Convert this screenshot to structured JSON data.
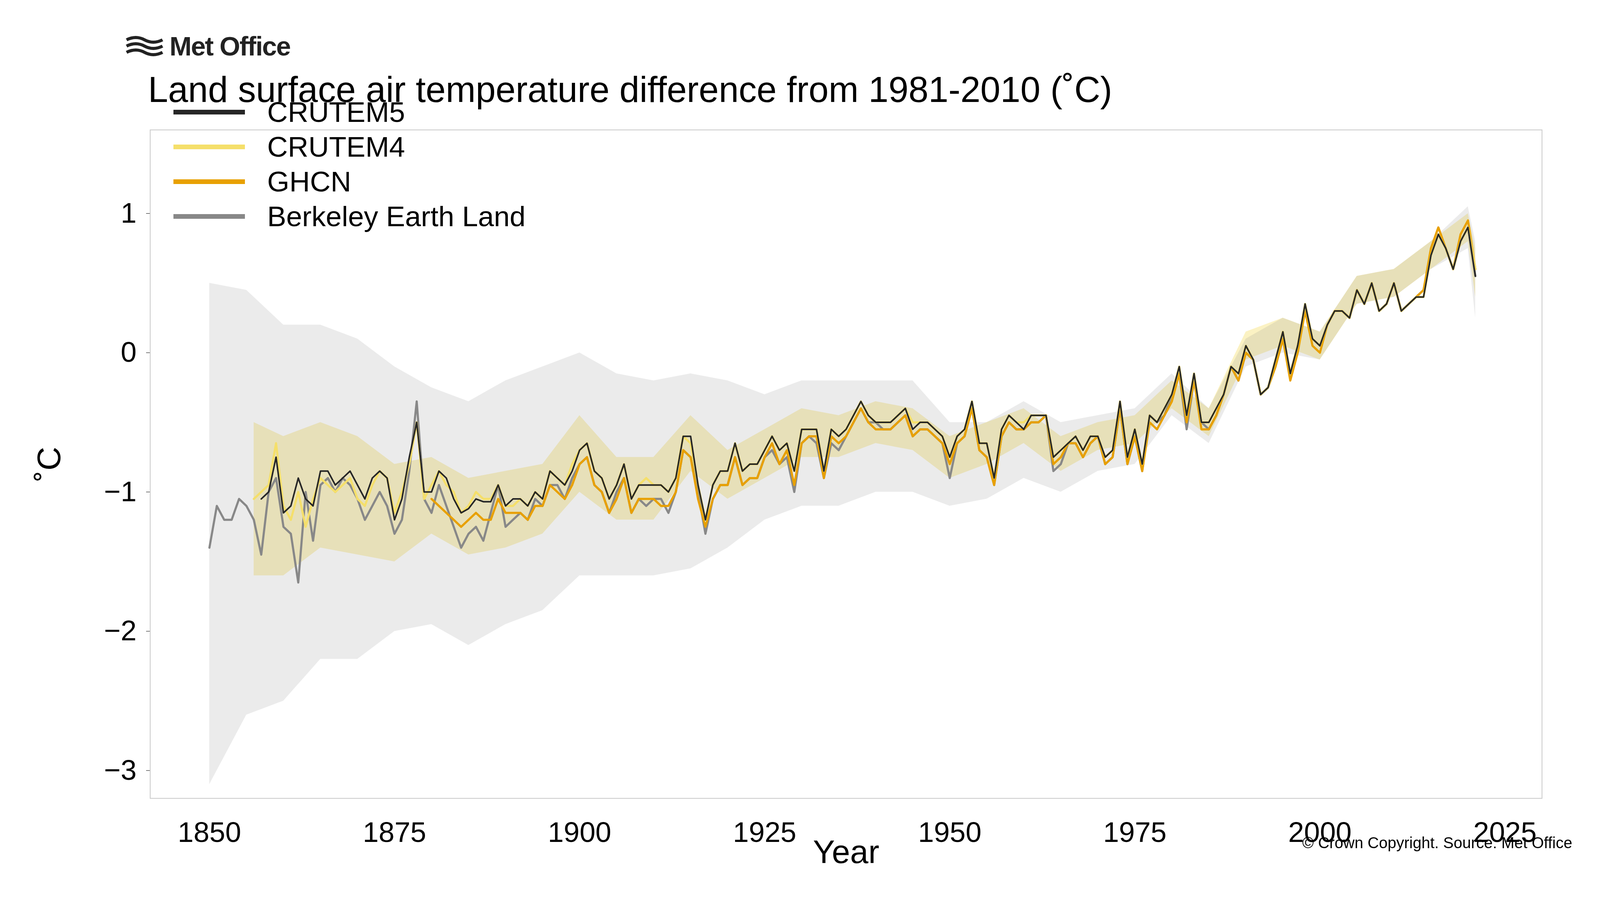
{
  "chart_data": {
    "type": "line",
    "logo_text": "Met Office",
    "title": "Land surface air temperature difference from 1981-2010 (˚C)",
    "xlabel": "Year",
    "ylabel": "˚C",
    "caption": "© Crown Copyright. Source: Met Office",
    "legend": "upper left",
    "grid": false,
    "xlim": [
      1842,
      2030
    ],
    "ylim": [
      -3.2,
      1.6
    ],
    "xticks": [
      1850,
      1875,
      1900,
      1925,
      1950,
      1975,
      2000,
      2025
    ],
    "yticks": [
      -3,
      -2,
      -1,
      0,
      1
    ],
    "x": [
      1850,
      1851,
      1852,
      1853,
      1854,
      1855,
      1856,
      1857,
      1858,
      1859,
      1860,
      1861,
      1862,
      1863,
      1864,
      1865,
      1866,
      1867,
      1868,
      1869,
      1870,
      1871,
      1872,
      1873,
      1874,
      1875,
      1876,
      1877,
      1878,
      1879,
      1880,
      1881,
      1882,
      1883,
      1884,
      1885,
      1886,
      1887,
      1888,
      1889,
      1890,
      1891,
      1892,
      1893,
      1894,
      1895,
      1896,
      1897,
      1898,
      1899,
      1900,
      1901,
      1902,
      1903,
      1904,
      1905,
      1906,
      1907,
      1908,
      1909,
      1910,
      1911,
      1912,
      1913,
      1914,
      1915,
      1916,
      1917,
      1918,
      1919,
      1920,
      1921,
      1922,
      1923,
      1924,
      1925,
      1926,
      1927,
      1928,
      1929,
      1930,
      1931,
      1932,
      1933,
      1934,
      1935,
      1936,
      1937,
      1938,
      1939,
      1940,
      1941,
      1942,
      1943,
      1944,
      1945,
      1946,
      1947,
      1948,
      1949,
      1950,
      1951,
      1952,
      1953,
      1954,
      1955,
      1956,
      1957,
      1958,
      1959,
      1960,
      1961,
      1962,
      1963,
      1964,
      1965,
      1966,
      1967,
      1968,
      1969,
      1970,
      1971,
      1972,
      1973,
      1974,
      1975,
      1976,
      1977,
      1978,
      1979,
      1980,
      1981,
      1982,
      1983,
      1984,
      1985,
      1986,
      1987,
      1988,
      1989,
      1990,
      1991,
      1992,
      1993,
      1994,
      1995,
      1996,
      1997,
      1998,
      1999,
      2000,
      2001,
      2002,
      2003,
      2004,
      2005,
      2006,
      2007,
      2008,
      2009,
      2010,
      2011,
      2012,
      2013,
      2014,
      2015,
      2016,
      2017,
      2018,
      2019,
      2020,
      2021
    ],
    "series": [
      {
        "name": "CRUTEM5",
        "color": "#262626",
        "values": [
          null,
          null,
          null,
          null,
          null,
          null,
          null,
          -1.05,
          -1.0,
          -0.75,
          -1.15,
          -1.1,
          -0.9,
          -1.05,
          -1.1,
          -0.85,
          -0.85,
          -0.95,
          -0.9,
          -0.85,
          -0.95,
          -1.05,
          -0.9,
          -0.85,
          -0.9,
          -1.2,
          -1.05,
          -0.75,
          -0.5,
          -1.0,
          -1.0,
          -0.85,
          -0.9,
          -1.05,
          -1.15,
          -1.12,
          -1.05,
          -1.07,
          -1.07,
          -0.95,
          -1.1,
          -1.05,
          -1.05,
          -1.1,
          -1.0,
          -1.05,
          -0.85,
          -0.9,
          -0.95,
          -0.85,
          -0.7,
          -0.65,
          -0.85,
          -0.9,
          -1.05,
          -0.95,
          -0.8,
          -1.05,
          -0.95,
          -0.95,
          -0.95,
          -0.95,
          -1.0,
          -0.9,
          -0.6,
          -0.6,
          -0.95,
          -1.2,
          -0.95,
          -0.85,
          -0.85,
          -0.65,
          -0.85,
          -0.8,
          -0.8,
          -0.7,
          -0.6,
          -0.7,
          -0.65,
          -0.85,
          -0.55,
          -0.55,
          -0.55,
          -0.85,
          -0.55,
          -0.6,
          -0.55,
          -0.45,
          -0.35,
          -0.45,
          -0.5,
          -0.5,
          -0.5,
          -0.45,
          -0.4,
          -0.55,
          -0.5,
          -0.5,
          -0.55,
          -0.6,
          -0.75,
          -0.6,
          -0.55,
          -0.35,
          -0.65,
          -0.65,
          -0.9,
          -0.55,
          -0.45,
          -0.5,
          -0.55,
          -0.45,
          -0.45,
          -0.45,
          -0.75,
          -0.7,
          -0.65,
          -0.6,
          -0.7,
          -0.6,
          -0.6,
          -0.75,
          -0.7,
          -0.35,
          -0.75,
          -0.55,
          -0.8,
          -0.45,
          -0.5,
          -0.4,
          -0.3,
          -0.1,
          -0.45,
          -0.15,
          -0.5,
          -0.5,
          -0.4,
          -0.3,
          -0.1,
          -0.15,
          0.05,
          -0.05,
          -0.3,
          -0.25,
          -0.05,
          0.15,
          -0.15,
          0.05,
          0.35,
          0.1,
          0.05,
          0.2,
          0.3,
          0.3,
          0.25,
          0.45,
          0.35,
          0.5,
          0.3,
          0.35,
          0.5,
          0.3,
          0.35,
          0.4,
          0.4,
          0.7,
          0.85,
          0.75,
          0.6,
          0.8,
          0.9,
          0.55
        ]
      },
      {
        "name": "CRUTEM4",
        "color": "#f5df6a",
        "values": [
          null,
          null,
          null,
          null,
          null,
          null,
          -1.05,
          -1.0,
          -0.95,
          -0.65,
          -1.1,
          -1.2,
          -1.0,
          -1.25,
          -1.05,
          -0.9,
          -0.95,
          -1.0,
          -0.95,
          -0.9,
          -1.05,
          -1.1,
          -0.95,
          -0.85,
          -0.9,
          -1.15,
          -1.0,
          -0.8,
          -0.5,
          -1.05,
          -0.95,
          -0.85,
          -0.95,
          -1.0,
          -1.15,
          -1.1,
          -1.0,
          -1.05,
          -1.05,
          -0.95,
          -1.1,
          -1.1,
          -1.05,
          -1.1,
          -1.0,
          -1.05,
          -0.85,
          -0.9,
          -0.95,
          -0.8,
          -0.7,
          -0.65,
          -0.85,
          -0.9,
          -1.05,
          -0.95,
          -0.8,
          -1.05,
          -0.95,
          -0.9,
          -0.95,
          -0.95,
          -1.0,
          -0.9,
          -0.6,
          -0.65,
          -0.95,
          -1.2,
          -0.95,
          -0.85,
          -0.85,
          -0.65,
          -0.85,
          -0.8,
          -0.8,
          -0.7,
          -0.6,
          -0.7,
          -0.65,
          -0.85,
          -0.55,
          -0.55,
          -0.55,
          -0.85,
          -0.55,
          -0.6,
          -0.55,
          -0.45,
          -0.35,
          -0.45,
          -0.5,
          -0.5,
          -0.5,
          -0.45,
          -0.4,
          -0.5,
          -0.5,
          -0.5,
          -0.55,
          -0.6,
          -0.75,
          -0.6,
          -0.55,
          -0.35,
          -0.65,
          -0.65,
          -0.9,
          -0.55,
          -0.45,
          -0.5,
          -0.5,
          -0.45,
          -0.45,
          -0.45,
          -0.75,
          -0.7,
          -0.65,
          -0.6,
          -0.7,
          -0.6,
          -0.6,
          -0.75,
          -0.7,
          -0.35,
          -0.75,
          -0.55,
          -0.8,
          -0.45,
          -0.5,
          -0.4,
          -0.3,
          -0.1,
          -0.45,
          -0.15,
          -0.5,
          -0.5,
          -0.4,
          -0.3,
          -0.1,
          -0.15,
          0.05,
          -0.05,
          -0.3,
          -0.25,
          -0.05,
          0.15,
          -0.15,
          0.05,
          0.35,
          0.1,
          0.05,
          0.2,
          0.3,
          0.3,
          0.25,
          0.45,
          0.35,
          0.5,
          0.3,
          0.35,
          0.5,
          0.3,
          0.35,
          0.4,
          0.4,
          0.7,
          0.85,
          0.75,
          0.6,
          0.8,
          0.9,
          0.6
        ],
        "band": {
          "x": [
            1856,
            1860,
            1865,
            1870,
            1875,
            1880,
            1885,
            1890,
            1895,
            1900,
            1905,
            1910,
            1915,
            1920,
            1925,
            1930,
            1935,
            1940,
            1945,
            1950,
            1955,
            1960,
            1965,
            1970,
            1975,
            1980,
            1985,
            1990,
            1995,
            2000,
            2005,
            2010,
            2015,
            2020,
            2021
          ],
          "lower": [
            -1.6,
            -1.6,
            -1.4,
            -1.45,
            -1.5,
            -1.3,
            -1.45,
            -1.4,
            -1.3,
            -1.0,
            -1.2,
            -1.2,
            -0.85,
            -1.05,
            -0.9,
            -0.75,
            -0.75,
            -0.65,
            -0.7,
            -0.9,
            -0.8,
            -0.65,
            -0.85,
            -0.7,
            -0.65,
            -0.4,
            -0.6,
            -0.05,
            0.05,
            -0.05,
            0.35,
            0.4,
            0.6,
            0.8,
            0.4
          ],
          "upper": [
            -0.5,
            -0.6,
            -0.5,
            -0.6,
            -0.8,
            -0.75,
            -0.9,
            -0.85,
            -0.8,
            -0.45,
            -0.75,
            -0.75,
            -0.45,
            -0.7,
            -0.55,
            -0.4,
            -0.45,
            -0.35,
            -0.4,
            -0.6,
            -0.5,
            -0.4,
            -0.6,
            -0.5,
            -0.45,
            -0.2,
            -0.4,
            0.15,
            0.25,
            0.15,
            0.55,
            0.6,
            0.8,
            1.0,
            0.75
          ]
        }
      },
      {
        "name": "GHCN",
        "color": "#e8a000",
        "values": [
          null,
          null,
          null,
          null,
          null,
          null,
          null,
          null,
          null,
          null,
          null,
          null,
          null,
          null,
          null,
          null,
          null,
          null,
          null,
          null,
          null,
          null,
          null,
          null,
          null,
          null,
          null,
          null,
          null,
          null,
          -1.05,
          -1.1,
          -1.15,
          -1.2,
          -1.25,
          -1.2,
          -1.15,
          -1.2,
          -1.2,
          -1.05,
          -1.15,
          -1.15,
          -1.15,
          -1.2,
          -1.1,
          -1.1,
          -0.95,
          -1.0,
          -1.05,
          -0.95,
          -0.8,
          -0.75,
          -0.95,
          -1.0,
          -1.15,
          -1.05,
          -0.9,
          -1.15,
          -1.05,
          -1.05,
          -1.05,
          -1.1,
          -1.1,
          -1.0,
          -0.7,
          -0.75,
          -1.05,
          -1.25,
          -1.05,
          -0.95,
          -0.95,
          -0.75,
          -0.95,
          -0.9,
          -0.9,
          -0.75,
          -0.65,
          -0.8,
          -0.7,
          -0.95,
          -0.65,
          -0.6,
          -0.6,
          -0.9,
          -0.6,
          -0.65,
          -0.6,
          -0.5,
          -0.4,
          -0.5,
          -0.55,
          -0.55,
          -0.55,
          -0.5,
          -0.45,
          -0.6,
          -0.55,
          -0.55,
          -0.6,
          -0.65,
          -0.8,
          -0.65,
          -0.6,
          -0.4,
          -0.7,
          -0.75,
          -0.95,
          -0.6,
          -0.5,
          -0.55,
          -0.55,
          -0.5,
          -0.5,
          -0.45,
          -0.8,
          -0.75,
          -0.65,
          -0.65,
          -0.75,
          -0.65,
          -0.6,
          -0.8,
          -0.75,
          -0.4,
          -0.8,
          -0.6,
          -0.85,
          -0.5,
          -0.55,
          -0.45,
          -0.35,
          -0.15,
          -0.5,
          -0.2,
          -0.55,
          -0.55,
          -0.45,
          -0.3,
          -0.1,
          -0.2,
          0.0,
          -0.05,
          -0.3,
          -0.25,
          -0.1,
          0.1,
          -0.2,
          0.0,
          0.3,
          0.05,
          0.0,
          0.2,
          0.3,
          0.3,
          0.25,
          0.45,
          0.35,
          0.5,
          0.3,
          0.35,
          0.5,
          0.3,
          0.35,
          0.4,
          0.45,
          0.75,
          0.9,
          0.75,
          0.6,
          0.85,
          0.95,
          0.6
        ]
      },
      {
        "name": "Berkeley Earth Land",
        "color": "#888888",
        "values": [
          -1.4,
          -1.1,
          -1.2,
          -1.2,
          -1.05,
          -1.1,
          -1.2,
          -1.45,
          -1.0,
          -0.9,
          -1.25,
          -1.3,
          -1.65,
          -1.0,
          -1.35,
          -0.95,
          -0.9,
          -1.0,
          -0.9,
          -0.95,
          -1.05,
          -1.2,
          -1.1,
          -1.0,
          -1.1,
          -1.3,
          -1.2,
          -0.85,
          -0.35,
          -1.05,
          -1.15,
          -0.95,
          -1.1,
          -1.25,
          -1.4,
          -1.3,
          -1.25,
          -1.35,
          -1.15,
          -0.95,
          -1.25,
          -1.2,
          -1.15,
          -1.2,
          -1.05,
          -1.1,
          -0.95,
          -0.95,
          -1.05,
          -0.9,
          -0.8,
          -0.75,
          -0.95,
          -1.0,
          -1.15,
          -1.0,
          -0.9,
          -1.15,
          -1.05,
          -1.1,
          -1.05,
          -1.05,
          -1.15,
          -1.0,
          -0.7,
          -0.75,
          -1.0,
          -1.3,
          -1.05,
          -0.95,
          -0.95,
          -0.75,
          -0.95,
          -0.9,
          -0.9,
          -0.75,
          -0.7,
          -0.8,
          -0.75,
          -1.0,
          -0.65,
          -0.6,
          -0.65,
          -0.9,
          -0.65,
          -0.7,
          -0.6,
          -0.5,
          -0.4,
          -0.5,
          -0.5,
          -0.55,
          -0.55,
          -0.5,
          -0.45,
          -0.6,
          -0.55,
          -0.55,
          -0.6,
          -0.65,
          -0.9,
          -0.65,
          -0.6,
          -0.4,
          -0.7,
          -0.75,
          -0.95,
          -0.6,
          -0.5,
          -0.55,
          -0.55,
          -0.5,
          -0.5,
          -0.45,
          -0.85,
          -0.8,
          -0.65,
          -0.65,
          -0.75,
          -0.65,
          -0.6,
          -0.8,
          -0.75,
          -0.4,
          -0.8,
          -0.6,
          -0.85,
          -0.45,
          -0.5,
          -0.45,
          -0.3,
          -0.15,
          -0.55,
          -0.2,
          -0.5,
          -0.55,
          -0.45,
          -0.3,
          -0.1,
          -0.2,
          0.0,
          -0.05,
          -0.3,
          -0.25,
          -0.1,
          0.1,
          -0.15,
          0.05,
          0.3,
          0.1,
          0.05,
          0.2,
          0.3,
          0.3,
          0.25,
          0.45,
          0.35,
          0.5,
          0.3,
          0.35,
          0.5,
          0.3,
          0.35,
          0.4,
          0.45,
          0.7,
          0.85,
          0.75,
          0.6,
          0.8,
          0.9,
          0.55
        ],
        "band": {
          "x": [
            1850,
            1855,
            1860,
            1865,
            1870,
            1875,
            1880,
            1885,
            1890,
            1895,
            1900,
            1905,
            1910,
            1915,
            1920,
            1925,
            1930,
            1935,
            1940,
            1945,
            1950,
            1955,
            1960,
            1965,
            1970,
            1975,
            1980,
            1985,
            1990,
            1995,
            2000,
            2005,
            2010,
            2015,
            2020,
            2021
          ],
          "lower": [
            -3.1,
            -2.6,
            -2.5,
            -2.2,
            -2.2,
            -2.0,
            -1.95,
            -2.1,
            -1.95,
            -1.85,
            -1.6,
            -1.6,
            -1.6,
            -1.55,
            -1.4,
            -1.2,
            -1.1,
            -1.1,
            -1.0,
            -1.0,
            -1.1,
            -1.05,
            -0.9,
            -1.0,
            -0.85,
            -0.8,
            -0.45,
            -0.65,
            -0.1,
            0.0,
            -0.05,
            0.35,
            0.4,
            0.6,
            0.75,
            0.25
          ],
          "upper": [
            0.5,
            0.45,
            0.2,
            0.2,
            0.1,
            -0.1,
            -0.25,
            -0.35,
            -0.2,
            -0.1,
            0.0,
            -0.15,
            -0.2,
            -0.15,
            -0.2,
            -0.3,
            -0.2,
            -0.2,
            -0.2,
            -0.2,
            -0.5,
            -0.5,
            -0.35,
            -0.5,
            -0.45,
            -0.4,
            -0.15,
            -0.4,
            0.1,
            0.25,
            0.15,
            0.55,
            0.6,
            0.8,
            1.05,
            0.8
          ]
        }
      }
    ]
  }
}
